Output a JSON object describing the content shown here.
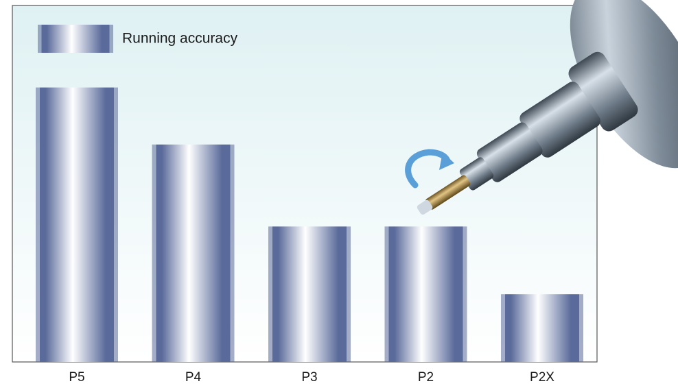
{
  "chart_data": {
    "type": "bar",
    "categories": [
      "P5",
      "P4",
      "P3",
      "P2",
      "P2X"
    ],
    "series": [
      {
        "name": "Running accuracy",
        "color": "#5a6a9a",
        "values": [
          77,
          61,
          38,
          38,
          19
        ]
      }
    ],
    "ylim": [
      0,
      100
    ],
    "legend": "upper left"
  }
}
